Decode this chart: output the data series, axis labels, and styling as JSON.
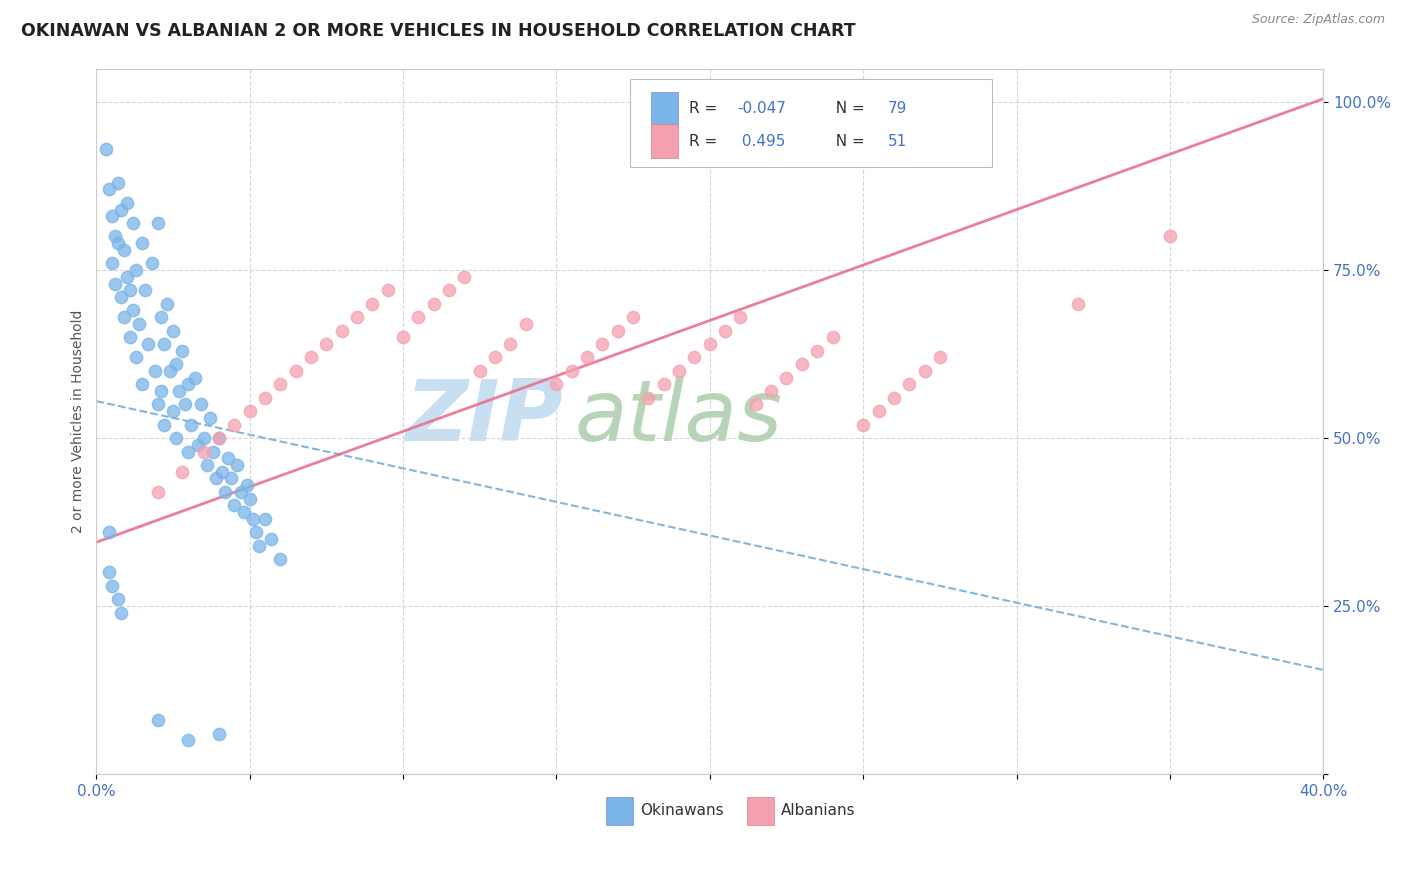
{
  "title": "OKINAWAN VS ALBANIAN 2 OR MORE VEHICLES IN HOUSEHOLD CORRELATION CHART",
  "source": "Source: ZipAtlas.com",
  "ylabel": "2 or more Vehicles in Household",
  "x_range": [
    0.0,
    0.4
  ],
  "y_range": [
    0.0,
    1.05
  ],
  "okinawan_color": "#7ab4e8",
  "albanian_color": "#f5a0b0",
  "okinawan_line_color": "#6aaad8",
  "albanian_line_color": "#e87090",
  "legend_label_okinawan": "Okinawans",
  "legend_label_albanian": "Albanians",
  "ok_trend_x0": 0.0,
  "ok_trend_y0": 0.555,
  "ok_trend_x1": 0.4,
  "ok_trend_y1": 0.155,
  "al_trend_x0": 0.0,
  "al_trend_y0": 0.345,
  "al_trend_x1": 0.4,
  "al_trend_y1": 1.005,
  "okinawan_x": [
    0.003,
    0.004,
    0.005,
    0.005,
    0.006,
    0.006,
    0.007,
    0.007,
    0.008,
    0.008,
    0.009,
    0.009,
    0.01,
    0.01,
    0.011,
    0.011,
    0.012,
    0.012,
    0.013,
    0.013,
    0.014,
    0.015,
    0.015,
    0.016,
    0.017,
    0.018,
    0.019,
    0.02,
    0.02,
    0.021,
    0.021,
    0.022,
    0.022,
    0.023,
    0.024,
    0.025,
    0.025,
    0.026,
    0.026,
    0.027,
    0.028,
    0.029,
    0.03,
    0.03,
    0.031,
    0.032,
    0.033,
    0.034,
    0.035,
    0.036,
    0.037,
    0.038,
    0.039,
    0.04,
    0.041,
    0.042,
    0.043,
    0.044,
    0.045,
    0.046,
    0.047,
    0.048,
    0.049,
    0.05,
    0.051,
    0.052,
    0.053,
    0.055,
    0.057,
    0.06,
    0.004,
    0.004,
    0.005,
    0.007,
    0.008,
    0.02,
    0.03,
    0.04
  ],
  "okinawan_y": [
    0.93,
    0.87,
    0.83,
    0.76,
    0.8,
    0.73,
    0.88,
    0.79,
    0.84,
    0.71,
    0.78,
    0.68,
    0.85,
    0.74,
    0.72,
    0.65,
    0.82,
    0.69,
    0.75,
    0.62,
    0.67,
    0.79,
    0.58,
    0.72,
    0.64,
    0.76,
    0.6,
    0.82,
    0.55,
    0.68,
    0.57,
    0.64,
    0.52,
    0.7,
    0.6,
    0.66,
    0.54,
    0.61,
    0.5,
    0.57,
    0.63,
    0.55,
    0.58,
    0.48,
    0.52,
    0.59,
    0.49,
    0.55,
    0.5,
    0.46,
    0.53,
    0.48,
    0.44,
    0.5,
    0.45,
    0.42,
    0.47,
    0.44,
    0.4,
    0.46,
    0.42,
    0.39,
    0.43,
    0.41,
    0.38,
    0.36,
    0.34,
    0.38,
    0.35,
    0.32,
    0.36,
    0.3,
    0.28,
    0.26,
    0.24,
    0.08,
    0.05,
    0.06
  ],
  "albanian_x": [
    0.02,
    0.028,
    0.035,
    0.04,
    0.045,
    0.05,
    0.055,
    0.06,
    0.065,
    0.07,
    0.075,
    0.08,
    0.085,
    0.09,
    0.095,
    0.1,
    0.105,
    0.11,
    0.115,
    0.12,
    0.125,
    0.13,
    0.135,
    0.14,
    0.15,
    0.155,
    0.16,
    0.165,
    0.17,
    0.175,
    0.18,
    0.185,
    0.19,
    0.195,
    0.2,
    0.205,
    0.21,
    0.215,
    0.22,
    0.225,
    0.23,
    0.235,
    0.24,
    0.25,
    0.255,
    0.26,
    0.265,
    0.27,
    0.275,
    0.32,
    0.35
  ],
  "albanian_y": [
    0.42,
    0.45,
    0.48,
    0.5,
    0.52,
    0.54,
    0.56,
    0.58,
    0.6,
    0.62,
    0.64,
    0.66,
    0.68,
    0.7,
    0.72,
    0.65,
    0.68,
    0.7,
    0.72,
    0.74,
    0.6,
    0.62,
    0.64,
    0.67,
    0.58,
    0.6,
    0.62,
    0.64,
    0.66,
    0.68,
    0.56,
    0.58,
    0.6,
    0.62,
    0.64,
    0.66,
    0.68,
    0.55,
    0.57,
    0.59,
    0.61,
    0.63,
    0.65,
    0.52,
    0.54,
    0.56,
    0.58,
    0.6,
    0.62,
    0.7,
    0.8
  ]
}
